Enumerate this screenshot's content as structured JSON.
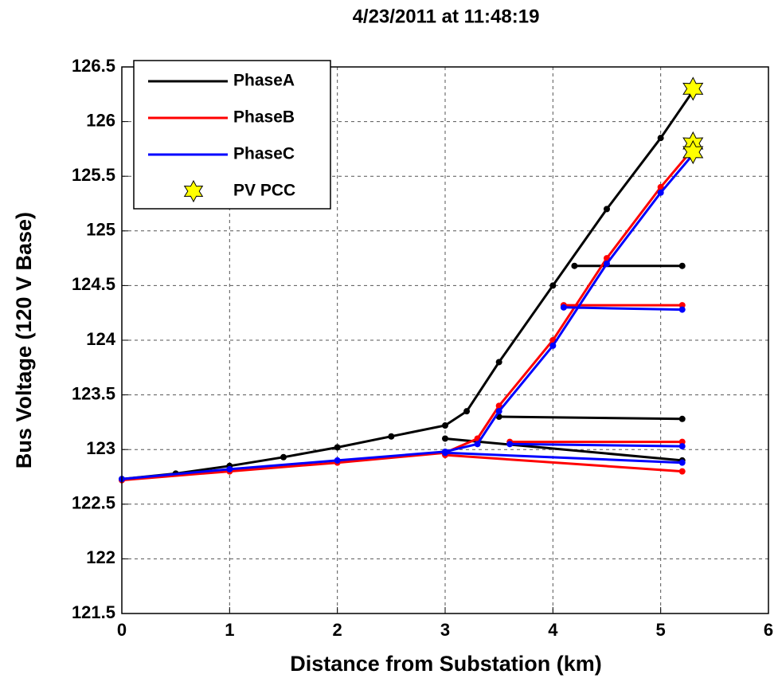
{
  "chart_data": {
    "type": "line",
    "title": "4/23/2011 at 11:48:19",
    "x_label": "Distance from Substation (km)",
    "y_label": "Bus Voltage (120 V Base)",
    "xlim": [
      0,
      6
    ],
    "xticks": [
      0,
      1,
      2,
      3,
      4,
      5,
      6
    ],
    "ylim": [
      121.5,
      126.5
    ],
    "yticks": [
      121.5,
      122,
      122.5,
      123,
      123.5,
      124,
      124.5,
      125,
      125.5,
      126,
      126.5
    ],
    "grid": true,
    "legend": "upper left",
    "series": [
      {
        "name": "PhaseA",
        "color": "#000000",
        "x": [
          0,
          0.5,
          1,
          1.5,
          2,
          2.5,
          3,
          3.2,
          3.5,
          4,
          4.5,
          5,
          5.3,
          null,
          4.2,
          5.2,
          null,
          3.5,
          5.2,
          null,
          3,
          5.2
        ],
        "values": [
          122.73,
          122.78,
          122.85,
          122.93,
          123.02,
          123.12,
          123.22,
          123.35,
          123.8,
          124.5,
          125.2,
          125.85,
          126.28,
          null,
          124.68,
          124.68,
          null,
          123.3,
          123.28,
          null,
          123.1,
          122.9
        ]
      },
      {
        "name": "PhaseB",
        "color": "#ff0000",
        "x": [
          0,
          1,
          2,
          3,
          3.3,
          3.5,
          4,
          4.5,
          5,
          5.3,
          null,
          4.1,
          5.2,
          null,
          3.6,
          5.2,
          null,
          3,
          5.2
        ],
        "values": [
          122.72,
          122.8,
          122.88,
          122.97,
          123.1,
          123.4,
          124.0,
          124.75,
          125.4,
          125.75,
          null,
          124.32,
          124.32,
          null,
          123.07,
          123.07,
          null,
          122.95,
          122.8
        ]
      },
      {
        "name": "PhaseC",
        "color": "#0000ff",
        "x": [
          0,
          1,
          2,
          3,
          3.3,
          3.5,
          4,
          4.5,
          5,
          5.3,
          null,
          4.1,
          5.2,
          null,
          3.6,
          5.2,
          null,
          3,
          5.2
        ],
        "values": [
          122.73,
          122.82,
          122.9,
          122.98,
          123.05,
          123.35,
          123.95,
          124.7,
          125.35,
          125.7,
          null,
          124.3,
          124.28,
          null,
          123.05,
          123.03,
          null,
          122.97,
          122.88
        ]
      },
      {
        "name": "PV PCC",
        "color": "#ffff00",
        "marker": "star",
        "x": [
          5.3,
          5.3,
          5.3
        ],
        "values": [
          126.3,
          125.8,
          125.72
        ]
      }
    ]
  }
}
